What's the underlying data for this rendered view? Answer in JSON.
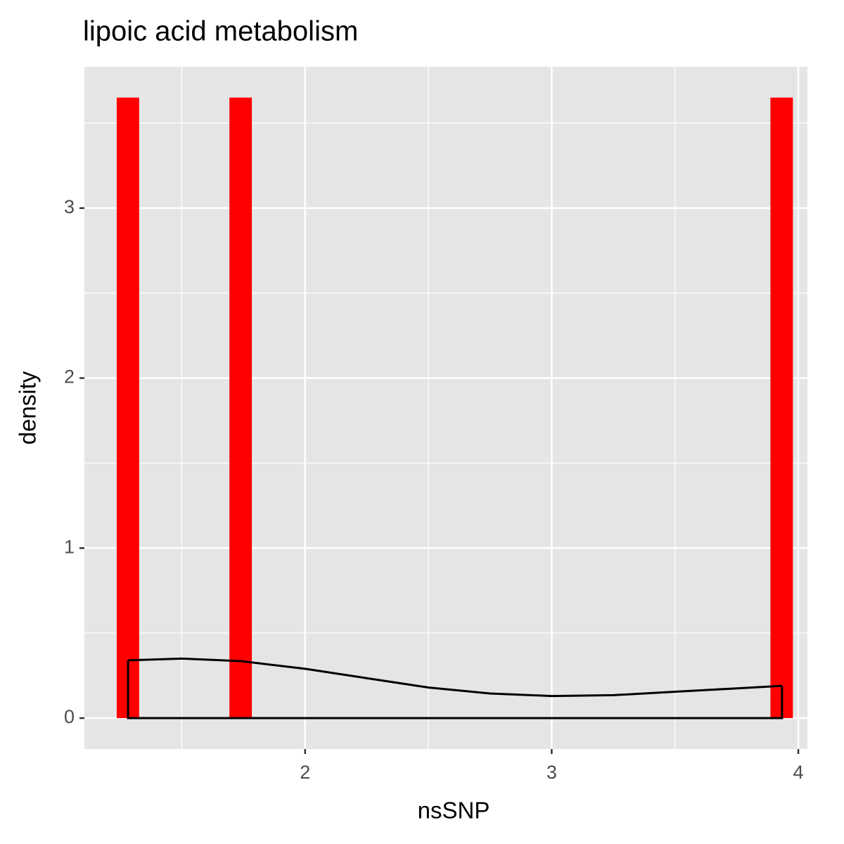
{
  "chart_data": {
    "type": "histogram",
    "title": "lipoic acid metabolism",
    "x_label": "nsSNP",
    "y_label": "density",
    "bins": [
      1.236,
      1.327,
      1.419,
      1.51,
      1.602,
      1.693,
      1.784,
      1.876,
      1.967,
      2.059,
      2.15,
      2.241,
      2.333,
      2.424,
      2.516,
      2.607,
      2.698,
      2.79,
      2.881,
      2.973,
      3.064,
      3.155,
      3.247,
      3.338,
      3.43,
      3.521,
      3.612,
      3.704,
      3.795,
      3.887,
      3.978
    ],
    "values": [
      3.65,
      0,
      0,
      0,
      0,
      3.65,
      0,
      0,
      0,
      0,
      0,
      0,
      0,
      0,
      0,
      0,
      0,
      0,
      0,
      0,
      0,
      0,
      0,
      0,
      0,
      0,
      0,
      0,
      0,
      3.65
    ],
    "color": "#ff0000",
    "density": {
      "x": [
        1.282,
        1.5,
        1.741,
        2,
        2.25,
        2.5,
        2.75,
        3,
        3.25,
        3.5,
        3.75,
        3.934
      ],
      "y": [
        0.34,
        0.35,
        0.335,
        0.29,
        0.235,
        0.18,
        0.145,
        0.13,
        0.135,
        0.155,
        0.175,
        0.19
      ],
      "color": "#000000"
    },
    "xlim": [
      1.105,
      4.037
    ],
    "ylim": [
      -0.182,
      3.831
    ],
    "xticks": [
      2,
      3,
      4
    ],
    "yticks": [
      0,
      1,
      2,
      3
    ],
    "xminor": [
      1.5,
      2.5,
      3.5
    ],
    "yminor": [
      0.5,
      1.5,
      2.5,
      3.5
    ],
    "grid": true
  }
}
